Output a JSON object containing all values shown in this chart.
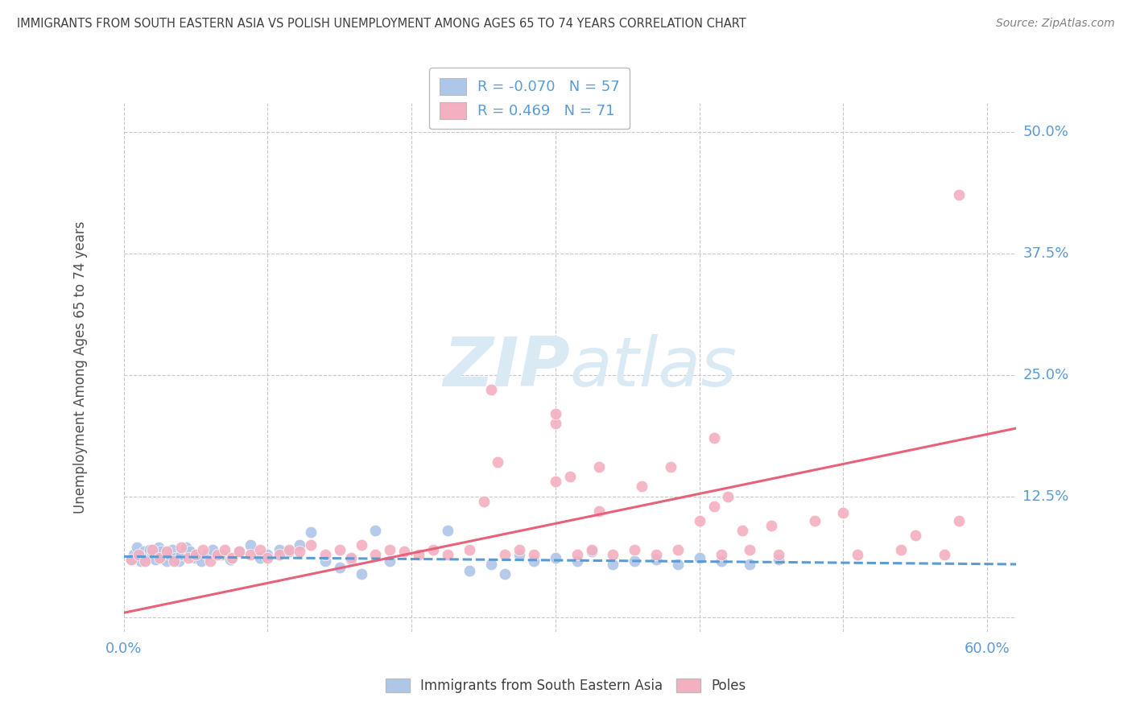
{
  "title": "IMMIGRANTS FROM SOUTH EASTERN ASIA VS POLISH UNEMPLOYMENT AMONG AGES 65 TO 74 YEARS CORRELATION CHART",
  "source": "Source: ZipAtlas.com",
  "ylabel": "Unemployment Among Ages 65 to 74 years",
  "xlim": [
    0.0,
    0.62
  ],
  "ylim": [
    -0.015,
    0.53
  ],
  "ytick_positions": [
    0.0,
    0.125,
    0.25,
    0.375,
    0.5
  ],
  "ytick_labels": [
    "",
    "12.5%",
    "25.0%",
    "37.5%",
    "50.0%"
  ],
  "legend1_R": "-0.070",
  "legend1_N": "57",
  "legend2_R": " 0.469",
  "legend2_N": "71",
  "blue_color": "#aec6e8",
  "pink_color": "#f4afc0",
  "blue_line_color": "#5b9bd5",
  "pink_line_color": "#e8617a",
  "grid_color": "#c8c8c8",
  "title_color": "#404040",
  "axis_label_color": "#5b9bd5",
  "source_color": "#808080",
  "watermark_color": "#daeaf5",
  "blue_line_y_start": 0.063,
  "blue_line_y_end": 0.055,
  "pink_line_y_start": 0.005,
  "pink_line_y_end": 0.195,
  "blue_scatter_x": [
    0.005,
    0.007,
    0.009,
    0.012,
    0.014,
    0.016,
    0.018,
    0.02,
    0.022,
    0.024,
    0.026,
    0.028,
    0.03,
    0.032,
    0.034,
    0.036,
    0.038,
    0.04,
    0.043,
    0.046,
    0.05,
    0.054,
    0.058,
    0.062,
    0.068,
    0.074,
    0.08,
    0.088,
    0.095,
    0.1,
    0.108,
    0.115,
    0.122,
    0.13,
    0.14,
    0.15,
    0.158,
    0.165,
    0.175,
    0.185,
    0.225,
    0.24,
    0.255,
    0.265,
    0.275,
    0.285,
    0.3,
    0.315,
    0.325,
    0.34,
    0.355,
    0.37,
    0.385,
    0.4,
    0.415,
    0.435,
    0.455
  ],
  "blue_scatter_y": [
    0.06,
    0.065,
    0.072,
    0.058,
    0.068,
    0.062,
    0.07,
    0.065,
    0.06,
    0.072,
    0.068,
    0.062,
    0.058,
    0.065,
    0.07,
    0.062,
    0.058,
    0.065,
    0.072,
    0.068,
    0.062,
    0.058,
    0.065,
    0.07,
    0.065,
    0.06,
    0.068,
    0.075,
    0.062,
    0.065,
    0.07,
    0.068,
    0.075,
    0.088,
    0.058,
    0.052,
    0.06,
    0.045,
    0.09,
    0.058,
    0.09,
    0.048,
    0.055,
    0.045,
    0.065,
    0.058,
    0.062,
    0.058,
    0.068,
    0.055,
    0.058,
    0.06,
    0.055,
    0.062,
    0.058,
    0.055,
    0.06
  ],
  "pink_scatter_x": [
    0.005,
    0.01,
    0.015,
    0.02,
    0.025,
    0.03,
    0.035,
    0.04,
    0.045,
    0.05,
    0.055,
    0.06,
    0.065,
    0.07,
    0.075,
    0.08,
    0.088,
    0.095,
    0.1,
    0.108,
    0.115,
    0.122,
    0.13,
    0.14,
    0.15,
    0.158,
    0.165,
    0.175,
    0.185,
    0.195,
    0.205,
    0.215,
    0.225,
    0.24,
    0.255,
    0.265,
    0.275,
    0.285,
    0.3,
    0.315,
    0.325,
    0.34,
    0.355,
    0.37,
    0.385,
    0.4,
    0.415,
    0.435,
    0.455,
    0.48,
    0.51,
    0.54,
    0.57,
    0.58,
    0.26,
    0.31,
    0.36,
    0.42,
    0.25,
    0.3,
    0.33,
    0.38,
    0.33,
    0.43,
    0.41,
    0.45,
    0.5,
    0.55,
    0.3,
    0.41,
    0.58
  ],
  "pink_scatter_y": [
    0.06,
    0.065,
    0.058,
    0.07,
    0.062,
    0.068,
    0.058,
    0.072,
    0.062,
    0.065,
    0.07,
    0.058,
    0.065,
    0.07,
    0.062,
    0.068,
    0.065,
    0.07,
    0.062,
    0.065,
    0.07,
    0.068,
    0.075,
    0.065,
    0.07,
    0.062,
    0.075,
    0.065,
    0.07,
    0.068,
    0.065,
    0.07,
    0.065,
    0.07,
    0.235,
    0.065,
    0.07,
    0.065,
    0.14,
    0.065,
    0.07,
    0.065,
    0.07,
    0.065,
    0.07,
    0.1,
    0.065,
    0.07,
    0.065,
    0.1,
    0.065,
    0.07,
    0.065,
    0.1,
    0.16,
    0.145,
    0.135,
    0.125,
    0.12,
    0.2,
    0.155,
    0.155,
    0.11,
    0.09,
    0.115,
    0.095,
    0.108,
    0.085,
    0.21,
    0.185,
    0.435
  ]
}
